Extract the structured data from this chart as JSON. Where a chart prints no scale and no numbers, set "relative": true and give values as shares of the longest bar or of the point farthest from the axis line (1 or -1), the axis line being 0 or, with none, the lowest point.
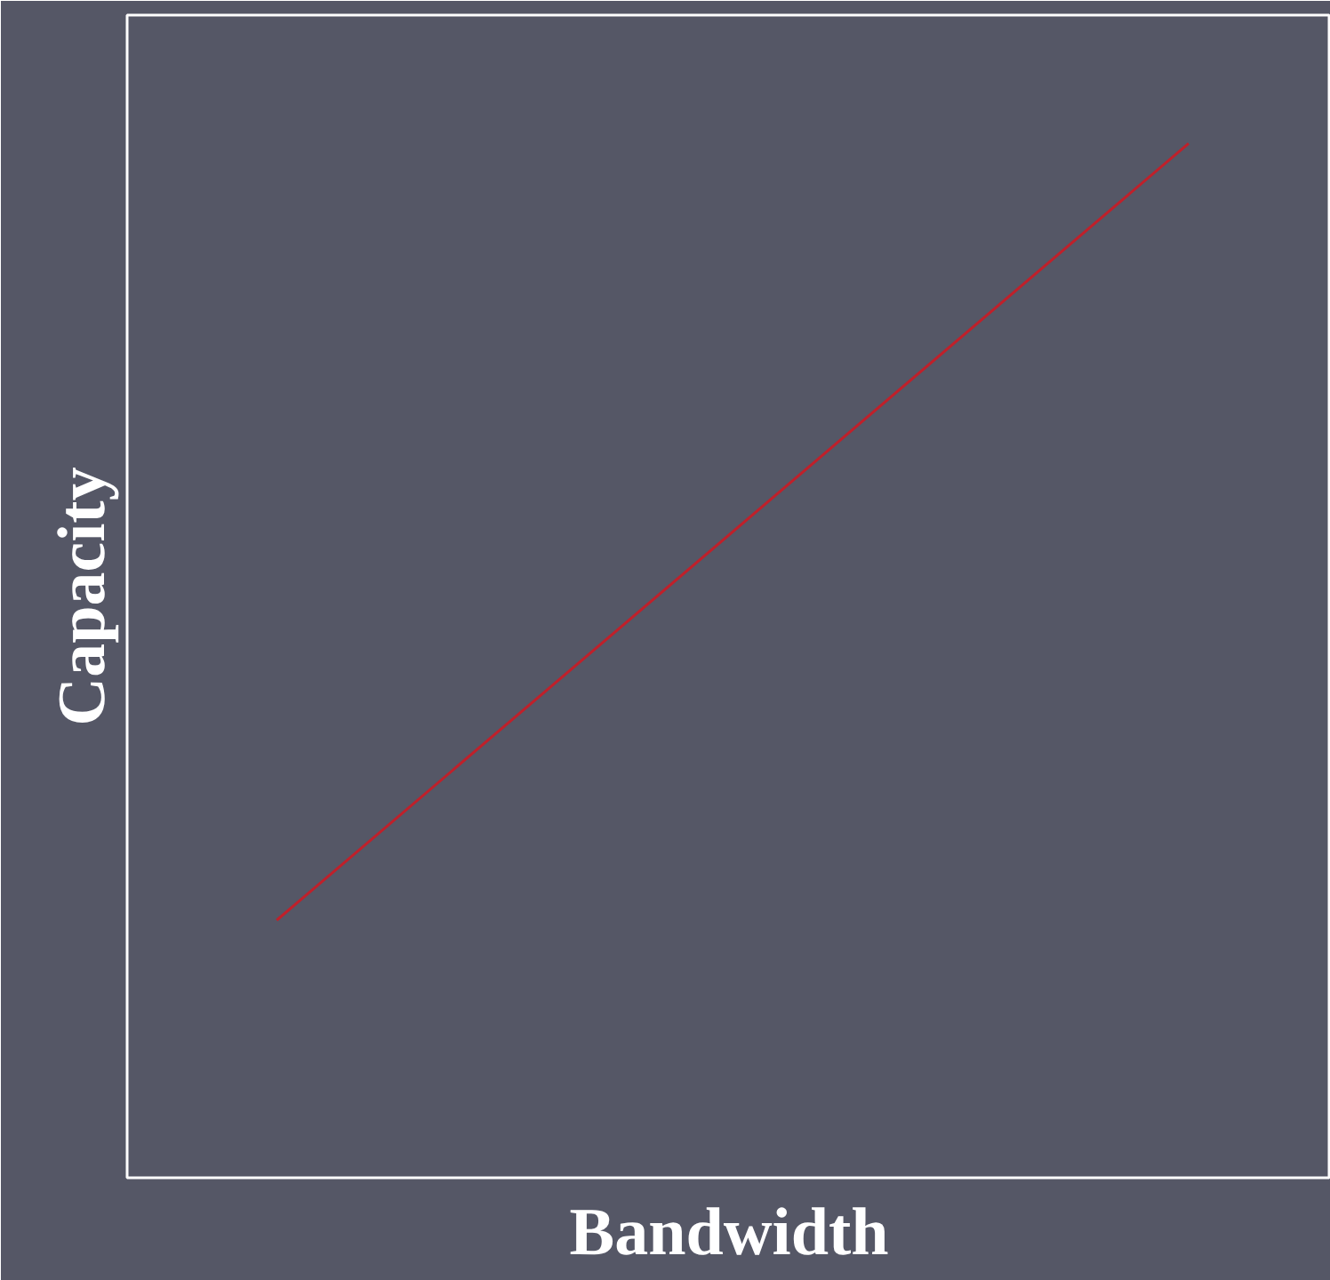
{
  "chart_data": {
    "type": "line",
    "xlabel": "Bandwidth",
    "ylabel": "Capacity",
    "categories": [
      null,
      null
    ],
    "relative": true,
    "series": [
      {
        "color": "#c0202a",
        "values": [
          0.249,
          1
        ]
      }
    ],
    "grid": false,
    "marker": "none",
    "line_style": "solid"
  }
}
